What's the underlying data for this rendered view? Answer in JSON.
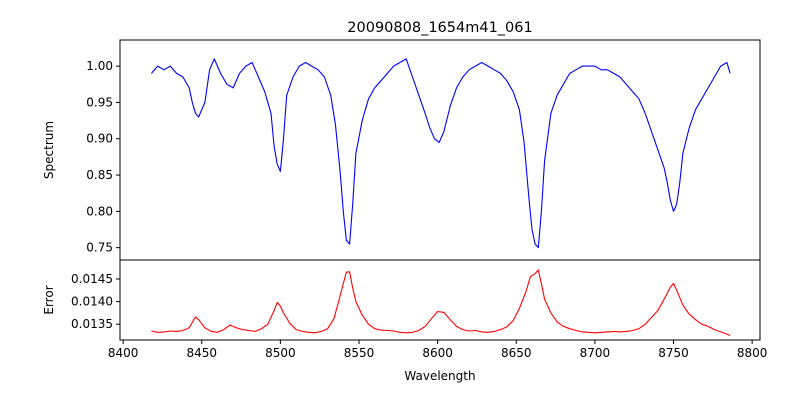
{
  "chart_data": [
    {
      "type": "line",
      "title": "20090808_1654m41_061",
      "xlabel": "",
      "ylabel": "Spectrum",
      "xlim": [
        8398,
        8805
      ],
      "ylim": [
        0.733,
        1.036
      ],
      "xticks": [],
      "yticks": [
        0.75,
        0.8,
        0.85,
        0.9,
        0.95,
        1.0
      ],
      "grid": false,
      "series": [
        {
          "color": "#0000ff",
          "x": [
            8418,
            8422,
            8426,
            8430,
            8434,
            8438,
            8442,
            8444,
            8446,
            8448,
            8452,
            8455,
            8458,
            8462,
            8466,
            8470,
            8474,
            8478,
            8482,
            8486,
            8490,
            8494,
            8496,
            8498,
            8500,
            8502,
            8504,
            8508,
            8512,
            8516,
            8520,
            8524,
            8528,
            8532,
            8535,
            8538,
            8540,
            8542,
            8544,
            8546,
            8548,
            8552,
            8556,
            8560,
            8566,
            8572,
            8576,
            8580,
            8584,
            8588,
            8592,
            8595,
            8598,
            8601,
            8604,
            8608,
            8612,
            8616,
            8620,
            8624,
            8628,
            8632,
            8636,
            8640,
            8644,
            8648,
            8652,
            8655,
            8658,
            8660,
            8662,
            8664,
            8666,
            8668,
            8672,
            8676,
            8680,
            8684,
            8688,
            8692,
            8696,
            8700,
            8704,
            8708,
            8712,
            8716,
            8720,
            8724,
            8728,
            8732,
            8736,
            8740,
            8744,
            8746,
            8748,
            8750,
            8752,
            8754,
            8756,
            8760,
            8764,
            8768,
            8772,
            8776,
            8780,
            8784,
            8786
          ],
          "y": [
            0.99,
            1.0,
            0.995,
            1.0,
            0.99,
            0.985,
            0.97,
            0.95,
            0.935,
            0.93,
            0.95,
            0.995,
            1.01,
            0.99,
            0.975,
            0.97,
            0.99,
            1.0,
            1.005,
            0.985,
            0.965,
            0.935,
            0.89,
            0.865,
            0.855,
            0.9,
            0.96,
            0.985,
            1.0,
            1.005,
            1.0,
            0.995,
            0.985,
            0.96,
            0.92,
            0.855,
            0.8,
            0.76,
            0.755,
            0.81,
            0.88,
            0.925,
            0.955,
            0.97,
            0.985,
            1.0,
            1.005,
            1.01,
            0.985,
            0.96,
            0.935,
            0.915,
            0.9,
            0.895,
            0.91,
            0.945,
            0.97,
            0.985,
            0.995,
            1.0,
            1.005,
            1.0,
            0.995,
            0.99,
            0.98,
            0.965,
            0.94,
            0.895,
            0.82,
            0.775,
            0.755,
            0.75,
            0.8,
            0.87,
            0.935,
            0.96,
            0.975,
            0.99,
            0.995,
            1.0,
            1.0,
            1.0,
            0.995,
            0.995,
            0.99,
            0.985,
            0.975,
            0.965,
            0.955,
            0.935,
            0.91,
            0.885,
            0.86,
            0.84,
            0.815,
            0.8,
            0.81,
            0.84,
            0.88,
            0.915,
            0.94,
            0.955,
            0.97,
            0.985,
            1.0,
            1.005,
            0.99
          ]
        }
      ]
    },
    {
      "type": "line",
      "title": "",
      "xlabel": "Wavelength",
      "ylabel": "Error",
      "xlim": [
        8398,
        8805
      ],
      "ylim": [
        0.01315,
        0.01492
      ],
      "xticks": [
        8400,
        8450,
        8500,
        8550,
        8600,
        8650,
        8700,
        8750,
        8800
      ],
      "yticks": [
        0.0135,
        0.014,
        0.0145
      ],
      "ytick_labels": [
        "0.0135",
        "0.0140",
        "0.0145"
      ],
      "grid": false,
      "series": [
        {
          "color": "#ff0000",
          "x": [
            8418,
            8422,
            8426,
            8430,
            8434,
            8438,
            8442,
            8446,
            8448,
            8452,
            8456,
            8460,
            8464,
            8468,
            8472,
            8476,
            8480,
            8484,
            8488,
            8492,
            8496,
            8498,
            8500,
            8502,
            8506,
            8510,
            8514,
            8518,
            8522,
            8526,
            8530,
            8534,
            8537,
            8540,
            8542,
            8544,
            8546,
            8548,
            8552,
            8556,
            8560,
            8564,
            8568,
            8572,
            8576,
            8580,
            8584,
            8588,
            8592,
            8596,
            8600,
            8604,
            8608,
            8612,
            8616,
            8620,
            8624,
            8628,
            8632,
            8636,
            8640,
            8644,
            8648,
            8652,
            8656,
            8659,
            8662,
            8664,
            8666,
            8668,
            8672,
            8676,
            8680,
            8684,
            8688,
            8692,
            8696,
            8700,
            8704,
            8708,
            8712,
            8716,
            8720,
            8724,
            8728,
            8732,
            8736,
            8740,
            8744,
            8748,
            8750,
            8752,
            8756,
            8760,
            8764,
            8768,
            8772,
            8776,
            8780,
            8784,
            8786
          ],
          "y": [
            0.01335,
            0.01332,
            0.01333,
            0.01335,
            0.01334,
            0.01336,
            0.01342,
            0.01366,
            0.0136,
            0.01342,
            0.01334,
            0.01332,
            0.01338,
            0.01348,
            0.01342,
            0.01338,
            0.01336,
            0.01334,
            0.0134,
            0.0135,
            0.0138,
            0.01398,
            0.0139,
            0.01375,
            0.01352,
            0.01338,
            0.01334,
            0.01332,
            0.01331,
            0.01334,
            0.0134,
            0.01362,
            0.014,
            0.0144,
            0.01465,
            0.01466,
            0.0143,
            0.014,
            0.0137,
            0.0135,
            0.0134,
            0.01337,
            0.01336,
            0.01335,
            0.01332,
            0.01331,
            0.01332,
            0.01336,
            0.01345,
            0.01362,
            0.01378,
            0.01376,
            0.0136,
            0.01345,
            0.01338,
            0.01335,
            0.01336,
            0.01333,
            0.01332,
            0.01334,
            0.01338,
            0.01344,
            0.01358,
            0.01385,
            0.0142,
            0.01455,
            0.01462,
            0.0147,
            0.0144,
            0.01405,
            0.01375,
            0.01355,
            0.01345,
            0.0134,
            0.01336,
            0.01333,
            0.01332,
            0.01331,
            0.01332,
            0.01333,
            0.01334,
            0.01333,
            0.01334,
            0.01336,
            0.0134,
            0.0135,
            0.01365,
            0.0138,
            0.01405,
            0.01432,
            0.0144,
            0.01425,
            0.01392,
            0.01372,
            0.0136,
            0.0135,
            0.01345,
            0.01338,
            0.01333,
            0.01328,
            0.01325
          ]
        }
      ]
    }
  ]
}
